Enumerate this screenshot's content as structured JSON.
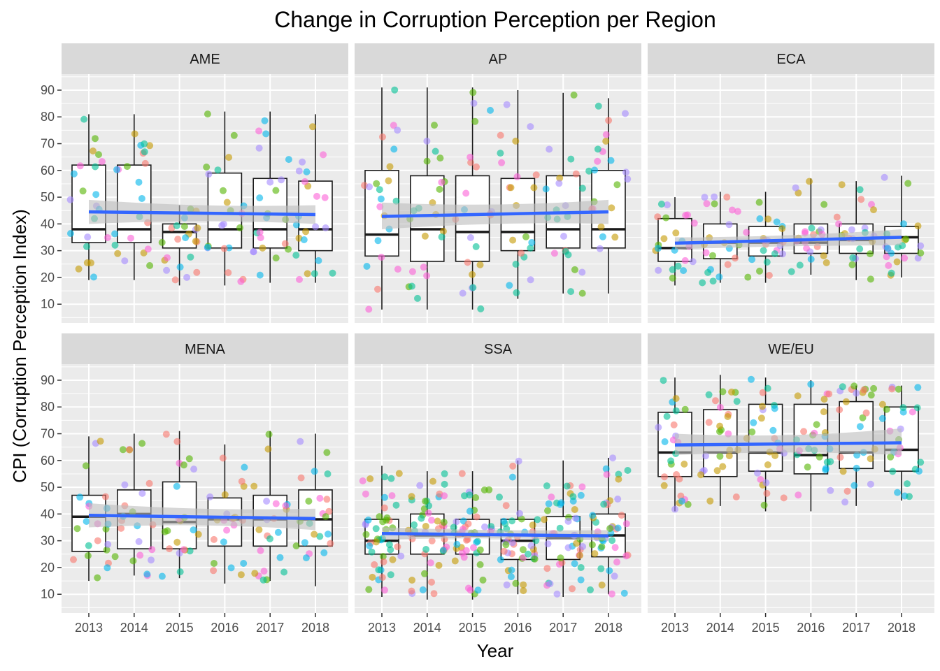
{
  "chart_data": {
    "type": "box",
    "title": "Change in Corruption Perception per Region",
    "xlabel": "Year",
    "ylabel": "CPI (Corruption Perception Index)",
    "categories": [
      "2013",
      "2014",
      "2015",
      "2016",
      "2017",
      "2018"
    ],
    "yticks": [
      10,
      20,
      30,
      40,
      50,
      60,
      70,
      80,
      90
    ],
    "ylim": [
      3,
      96
    ],
    "grid": true,
    "legend": "none",
    "point_colors": [
      "#f8766d",
      "#c49a00",
      "#53b400",
      "#00c094",
      "#00b6eb",
      "#a58aff",
      "#fb61d7"
    ],
    "trend_color": "#3366ff",
    "band_color": "#bdbdbd",
    "panels": [
      {
        "name": "AME",
        "boxes": [
          {
            "year": "2013",
            "min": 19,
            "q1": 33,
            "median": 38,
            "q3": 62,
            "max": 81
          },
          {
            "year": "2014",
            "min": 19,
            "q1": 33,
            "median": 38,
            "q3": 62,
            "max": 81
          },
          {
            "year": "2015",
            "min": 17,
            "q1": 31,
            "median": 37,
            "q3": 40,
            "max": 47
          },
          {
            "year": "2016",
            "min": 17,
            "q1": 31,
            "median": 38,
            "q3": 59,
            "max": 82
          },
          {
            "year": "2017",
            "min": 18,
            "q1": 31,
            "median": 38,
            "q3": 57,
            "max": 82
          },
          {
            "year": "2018",
            "min": 18,
            "q1": 30,
            "median": 38,
            "q3": 56,
            "max": 81
          }
        ],
        "trend": {
          "start": 44.5,
          "end": 43.5
        },
        "band": {
          "start": [
            40,
            49
          ],
          "mid": [
            42,
            46
          ],
          "end": [
            40,
            47
          ]
        }
      },
      {
        "name": "AP",
        "boxes": [
          {
            "year": "2013",
            "min": 8,
            "q1": 28,
            "median": 36,
            "q3": 60,
            "max": 91
          },
          {
            "year": "2014",
            "min": 8,
            "q1": 26,
            "median": 38,
            "q3": 58,
            "max": 91
          },
          {
            "year": "2015",
            "min": 8,
            "q1": 26,
            "median": 37,
            "q3": 58,
            "max": 91
          },
          {
            "year": "2016",
            "min": 12,
            "q1": 30,
            "median": 37,
            "q3": 57,
            "max": 90
          },
          {
            "year": "2017",
            "min": 14,
            "q1": 31,
            "median": 38,
            "q3": 58,
            "max": 89
          },
          {
            "year": "2018",
            "min": 14,
            "q1": 31,
            "median": 38,
            "q3": 60,
            "max": 87
          }
        ],
        "trend": {
          "start": 42.8,
          "end": 44.5
        },
        "band": {
          "start": [
            38,
            48
          ],
          "mid": [
            41,
            46
          ],
          "end": [
            40,
            49
          ]
        }
      },
      {
        "name": "ECA",
        "boxes": [
          {
            "year": "2013",
            "min": 17,
            "q1": 26,
            "median": 31,
            "q3": 42,
            "max": 50
          },
          {
            "year": "2014",
            "min": 18,
            "q1": 27,
            "median": 33,
            "q3": 40,
            "max": 52
          },
          {
            "year": "2015",
            "min": 18,
            "q1": 28,
            "median": 33,
            "q3": 39,
            "max": 52
          },
          {
            "year": "2016",
            "min": 21,
            "q1": 29,
            "median": 33,
            "q3": 40,
            "max": 57
          },
          {
            "year": "2017",
            "min": 19,
            "q1": 29,
            "median": 34,
            "q3": 40,
            "max": 56
          },
          {
            "year": "2018",
            "min": 20,
            "q1": 29,
            "median": 35,
            "q3": 39,
            "max": 58
          }
        ],
        "trend": {
          "start": 32.8,
          "end": 35
        },
        "band": {
          "start": [
            30.5,
            35
          ],
          "mid": [
            32,
            35
          ],
          "end": [
            32,
            38
          ]
        }
      },
      {
        "name": "MENA",
        "boxes": [
          {
            "year": "2013",
            "min": 15,
            "q1": 26,
            "median": 39,
            "q3": 47,
            "max": 69
          },
          {
            "year": "2014",
            "min": 17,
            "q1": 27,
            "median": 40,
            "q3": 49,
            "max": 70
          },
          {
            "year": "2015",
            "min": 16,
            "q1": 27,
            "median": 37,
            "q3": 52,
            "max": 71
          },
          {
            "year": "2016",
            "min": 14,
            "q1": 28,
            "median": 38,
            "q3": 46,
            "max": 66
          },
          {
            "year": "2017",
            "min": 15,
            "q1": 28,
            "median": 38,
            "q3": 47,
            "max": 71
          },
          {
            "year": "2018",
            "min": 13,
            "q1": 28,
            "median": 38,
            "q3": 49,
            "max": 70
          }
        ],
        "trend": {
          "start": 39.5,
          "end": 38.3
        },
        "band": {
          "start": [
            35,
            44
          ],
          "mid": [
            37,
            41
          ],
          "end": [
            34,
            42
          ]
        }
      },
      {
        "name": "SSA",
        "boxes": [
          {
            "year": "2013",
            "min": 9,
            "q1": 25,
            "median": 30,
            "q3": 38,
            "max": 58
          },
          {
            "year": "2014",
            "min": 8,
            "q1": 25,
            "median": 32,
            "q3": 40,
            "max": 56
          },
          {
            "year": "2015",
            "min": 8,
            "q1": 25,
            "median": 32,
            "q3": 38,
            "max": 56
          },
          {
            "year": "2016",
            "min": 10,
            "q1": 23,
            "median": 30,
            "q3": 38,
            "max": 60
          },
          {
            "year": "2017",
            "min": 9,
            "q1": 23,
            "median": 31,
            "q3": 39,
            "max": 60
          },
          {
            "year": "2018",
            "min": 10,
            "q1": 24,
            "median": 32,
            "q3": 40,
            "max": 61
          }
        ],
        "trend": {
          "start": 32.7,
          "end": 31.8
        },
        "band": {
          "start": [
            30.5,
            35
          ],
          "mid": [
            31.5,
            33.5
          ],
          "end": [
            30,
            34
          ]
        }
      },
      {
        "name": "WE/EU",
        "boxes": [
          {
            "year": "2013",
            "min": 41,
            "q1": 54,
            "median": 63,
            "q3": 78,
            "max": 91
          },
          {
            "year": "2014",
            "min": 43,
            "q1": 54,
            "median": 63,
            "q3": 79,
            "max": 92
          },
          {
            "year": "2015",
            "min": 41,
            "q1": 56,
            "median": 63,
            "q3": 81,
            "max": 91
          },
          {
            "year": "2016",
            "min": 41,
            "q1": 55,
            "median": 62,
            "q3": 81,
            "max": 90
          },
          {
            "year": "2017",
            "min": 43,
            "q1": 57,
            "median": 63,
            "q3": 82,
            "max": 88
          },
          {
            "year": "2018",
            "min": 45,
            "q1": 56,
            "median": 64,
            "q3": 80,
            "max": 88
          }
        ],
        "trend": {
          "start": 65.8,
          "end": 66.6
        },
        "band": {
          "start": [
            62,
            70
          ],
          "mid": [
            64,
            68
          ],
          "end": [
            62,
            72
          ]
        }
      }
    ]
  }
}
